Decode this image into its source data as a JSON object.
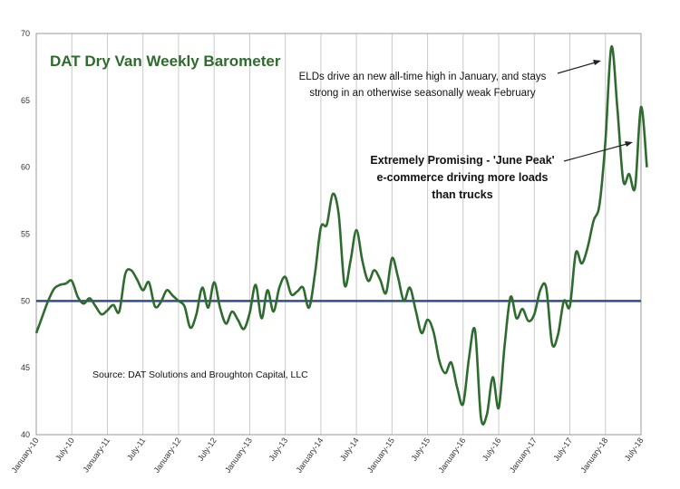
{
  "chart_data": {
    "type": "line",
    "title": "DAT Dry Van Weekly Barometer",
    "source": "Source: DAT Solutions and Broughton Capital, LLC",
    "annotations": [
      {
        "lines": [
          "ELDs drive an new all-time high in January, and stays",
          "strong in an otherwise seasonally weak February"
        ],
        "style": "normal",
        "target_date": "2018-01"
      },
      {
        "lines": [
          "Extremely Promising - 'June Peak'",
          "e-commerce driving more loads",
          "than trucks"
        ],
        "style": "bold",
        "target_date": "2018-06"
      }
    ],
    "ylim": [
      40,
      70
    ],
    "yticks": [
      40,
      45,
      50,
      55,
      60,
      65,
      70
    ],
    "xlim": [
      "2010-01",
      "2018-07"
    ],
    "xticks": [
      "January-10",
      "July-10",
      "January-11",
      "July-11",
      "January-12",
      "July-12",
      "January-13",
      "July-13",
      "January-14",
      "July-14",
      "January-15",
      "July-15",
      "January-16",
      "July-16",
      "January-17",
      "July-17",
      "January-18",
      "July-18"
    ],
    "reference_line": {
      "y": 50,
      "color": "#2f4f8a"
    },
    "series": [
      {
        "color": "#2e6b2e",
        "points": [
          [
            "2010-01",
            47.6
          ],
          [
            "2010-02",
            48.8
          ],
          [
            "2010-03",
            50.0
          ],
          [
            "2010-04",
            50.9
          ],
          [
            "2010-05",
            51.2
          ],
          [
            "2010-06",
            51.3
          ],
          [
            "2010-07",
            51.5
          ],
          [
            "2010-08",
            50.3
          ],
          [
            "2010-09",
            49.8
          ],
          [
            "2010-10",
            50.2
          ],
          [
            "2010-11",
            49.6
          ],
          [
            "2010-12",
            49.0
          ],
          [
            "2011-01",
            49.3
          ],
          [
            "2011-02",
            49.7
          ],
          [
            "2011-03",
            49.2
          ],
          [
            "2011-04",
            52.0
          ],
          [
            "2011-05",
            52.3
          ],
          [
            "2011-06",
            51.6
          ],
          [
            "2011-07",
            50.8
          ],
          [
            "2011-08",
            51.4
          ],
          [
            "2011-09",
            49.6
          ],
          [
            "2011-10",
            49.9
          ],
          [
            "2011-11",
            50.8
          ],
          [
            "2011-12",
            50.4
          ],
          [
            "2012-01",
            50.0
          ],
          [
            "2012-02",
            49.6
          ],
          [
            "2012-03",
            48.0
          ],
          [
            "2012-04",
            49.0
          ],
          [
            "2012-05",
            51.0
          ],
          [
            "2012-06",
            49.5
          ],
          [
            "2012-07",
            51.4
          ],
          [
            "2012-08",
            49.5
          ],
          [
            "2012-09",
            48.3
          ],
          [
            "2012-10",
            49.2
          ],
          [
            "2012-11",
            48.6
          ],
          [
            "2012-12",
            47.9
          ],
          [
            "2013-01",
            49.1
          ],
          [
            "2013-02",
            51.2
          ],
          [
            "2013-03",
            48.7
          ],
          [
            "2013-04",
            50.8
          ],
          [
            "2013-05",
            49.2
          ],
          [
            "2013-06",
            51.0
          ],
          [
            "2013-07",
            51.8
          ],
          [
            "2013-08",
            50.5
          ],
          [
            "2013-09",
            50.7
          ],
          [
            "2013-10",
            51.0
          ],
          [
            "2013-11",
            49.5
          ],
          [
            "2013-12",
            52.0
          ],
          [
            "2014-01",
            55.5
          ],
          [
            "2014-02",
            55.7
          ],
          [
            "2014-03",
            58.0
          ],
          [
            "2014-04",
            56.5
          ],
          [
            "2014-05",
            51.2
          ],
          [
            "2014-06",
            53.0
          ],
          [
            "2014-07",
            55.3
          ],
          [
            "2014-08",
            53.0
          ],
          [
            "2014-09",
            51.5
          ],
          [
            "2014-10",
            52.3
          ],
          [
            "2014-11",
            51.6
          ],
          [
            "2014-12",
            50.6
          ],
          [
            "2015-01",
            53.2
          ],
          [
            "2015-02",
            51.8
          ],
          [
            "2015-03",
            50.0
          ],
          [
            "2015-04",
            51.0
          ],
          [
            "2015-05",
            49.3
          ],
          [
            "2015-06",
            47.6
          ],
          [
            "2015-07",
            48.6
          ],
          [
            "2015-08",
            47.7
          ],
          [
            "2015-09",
            45.5
          ],
          [
            "2015-10",
            44.6
          ],
          [
            "2015-11",
            45.4
          ],
          [
            "2015-12",
            43.5
          ],
          [
            "2016-01",
            42.3
          ],
          [
            "2016-02",
            45.8
          ],
          [
            "2016-03",
            47.8
          ],
          [
            "2016-04",
            41.3
          ],
          [
            "2016-05",
            41.5
          ],
          [
            "2016-06",
            44.3
          ],
          [
            "2016-07",
            42.0
          ],
          [
            "2016-08",
            46.7
          ],
          [
            "2016-09",
            50.3
          ],
          [
            "2016-10",
            48.7
          ],
          [
            "2016-11",
            49.4
          ],
          [
            "2016-12",
            48.5
          ],
          [
            "2017-01",
            49.0
          ],
          [
            "2017-02",
            50.8
          ],
          [
            "2017-03",
            51.0
          ],
          [
            "2017-04",
            46.8
          ],
          [
            "2017-05",
            47.5
          ],
          [
            "2017-06",
            50.0
          ],
          [
            "2017-07",
            49.6
          ],
          [
            "2017-08",
            53.6
          ],
          [
            "2017-09",
            52.8
          ],
          [
            "2017-10",
            54.0
          ],
          [
            "2017-11",
            56.0
          ],
          [
            "2017-12",
            57.2
          ],
          [
            "2018-01",
            62.0
          ],
          [
            "2018-02",
            69.0
          ],
          [
            "2018-03",
            64.5
          ],
          [
            "2018-04",
            59.0
          ],
          [
            "2018-05",
            59.5
          ],
          [
            "2018-06",
            58.5
          ],
          [
            "2018-07",
            64.5
          ],
          [
            "2018-08",
            60.0
          ]
        ]
      }
    ]
  }
}
